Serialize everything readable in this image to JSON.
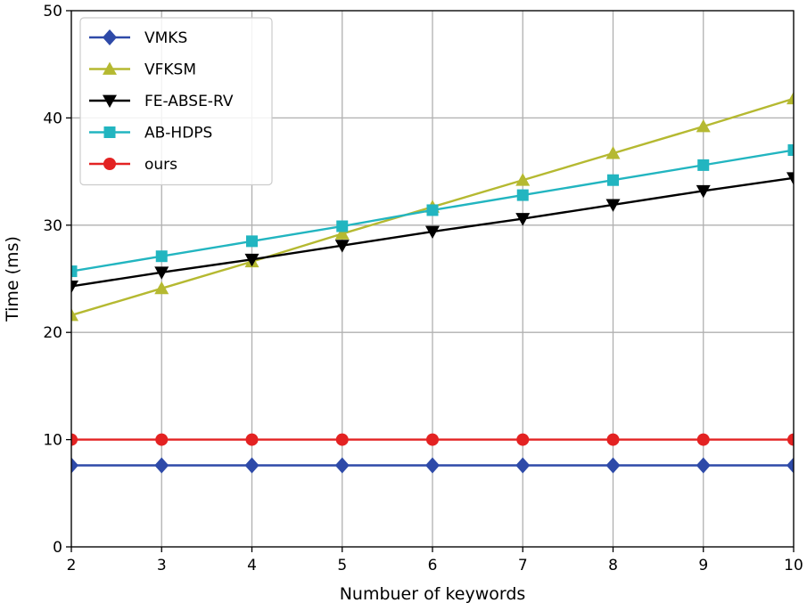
{
  "chart_data": {
    "type": "line",
    "title": "",
    "xlabel": "Numbuer of keywords",
    "ylabel": "Time (ms)",
    "xlim": [
      2,
      10
    ],
    "ylim": [
      0,
      50
    ],
    "x": [
      2,
      3,
      4,
      5,
      6,
      7,
      8,
      9,
      10
    ],
    "xticks": [
      "2",
      "3",
      "4",
      "5",
      "6",
      "7",
      "8",
      "9",
      "10"
    ],
    "yticks": [
      "0",
      "10",
      "20",
      "30",
      "40",
      "50"
    ],
    "grid": true,
    "legend_position": "top-left",
    "series": [
      {
        "name": "VMKS",
        "color": "#2e4aa8",
        "marker": "diamond",
        "values": [
          7.6,
          7.6,
          7.6,
          7.6,
          7.6,
          7.6,
          7.6,
          7.6,
          7.6
        ]
      },
      {
        "name": "VFKSM",
        "color": "#b5b931",
        "marker": "triangle-up",
        "values": [
          21.6,
          24.1,
          26.6,
          29.2,
          31.7,
          34.2,
          36.7,
          39.2,
          41.8
        ]
      },
      {
        "name": "FE-ABSE-RV",
        "color": "#000000",
        "marker": "triangle-down",
        "values": [
          24.3,
          25.6,
          26.8,
          28.1,
          29.4,
          30.6,
          31.9,
          33.2,
          34.4
        ]
      },
      {
        "name": "AB-HDPS",
        "color": "#22b5c0",
        "marker": "square",
        "values": [
          25.7,
          27.1,
          28.5,
          29.9,
          31.4,
          32.8,
          34.2,
          35.6,
          37.0
        ]
      },
      {
        "name": "ours",
        "color": "#e32222",
        "marker": "circle",
        "values": [
          10.0,
          10.0,
          10.0,
          10.0,
          10.0,
          10.0,
          10.0,
          10.0,
          10.0
        ]
      }
    ]
  }
}
